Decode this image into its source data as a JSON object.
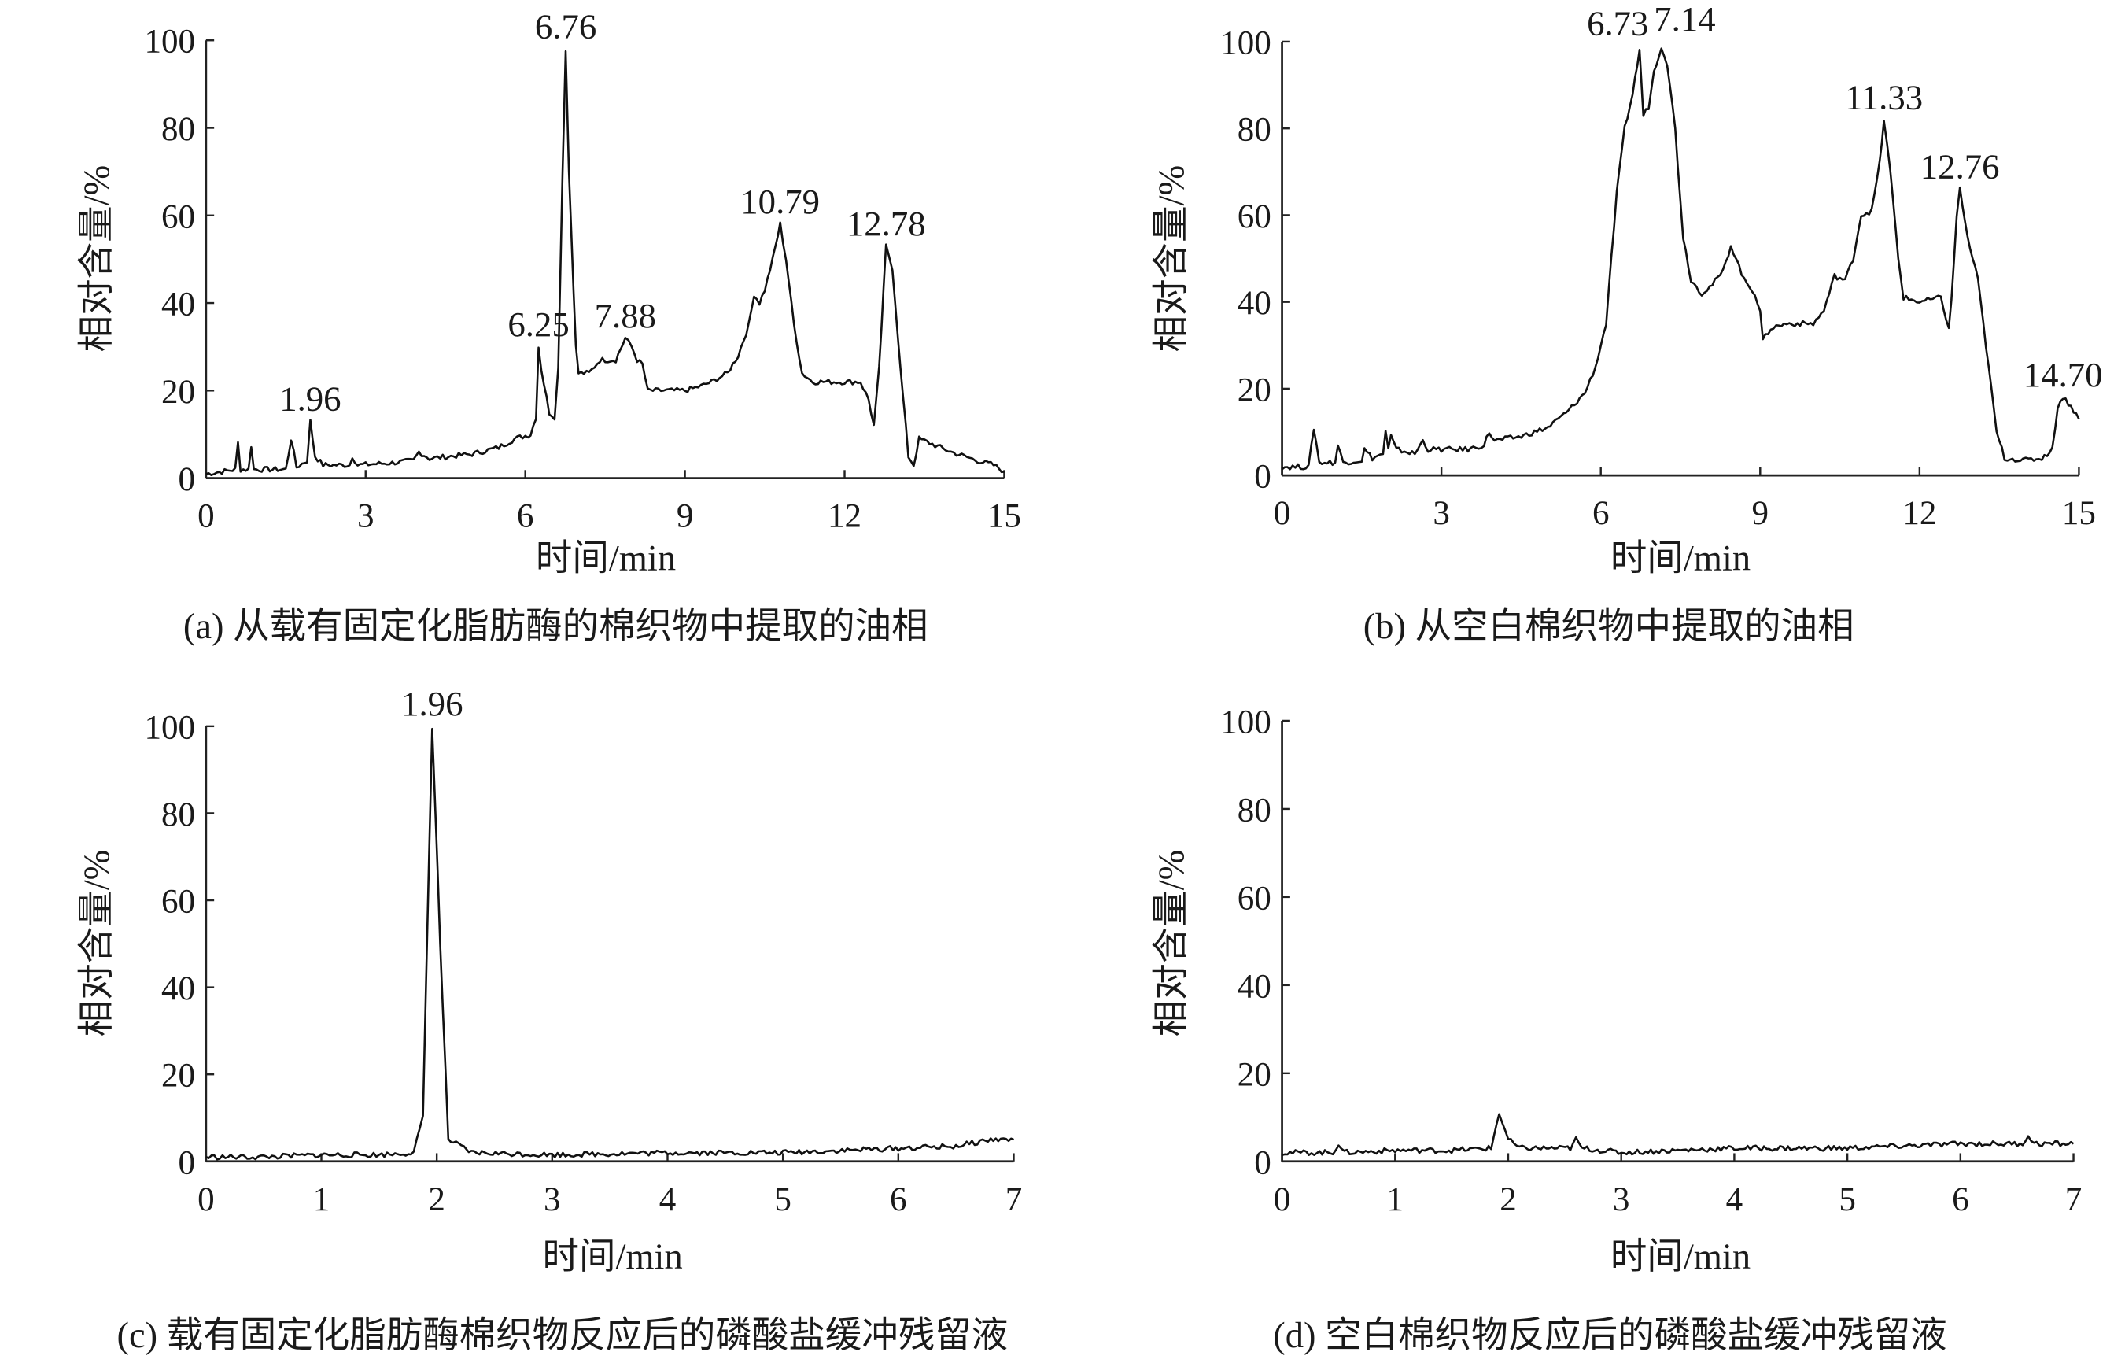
{
  "chart_data": [
    {
      "id": "a",
      "type": "line",
      "caption": "(a) 从载有固定化脂肪酶的棉织物中提取的油相",
      "xlabel": "时间/min",
      "ylabel": "相对含量/%",
      "xlim": [
        0,
        15
      ],
      "ylim": [
        0,
        100
      ],
      "xticks": [
        0,
        3,
        6,
        9,
        12,
        15
      ],
      "yticks": [
        0,
        20,
        40,
        60,
        80,
        100
      ],
      "annotations": [
        {
          "text": "1.96",
          "x": 1.96,
          "y": 13
        },
        {
          "text": "6.25",
          "x": 6.25,
          "y": 30
        },
        {
          "text": "6.76",
          "x": 6.76,
          "y": 98
        },
        {
          "text": "7.88",
          "x": 7.88,
          "y": 32
        },
        {
          "text": "10.79",
          "x": 10.79,
          "y": 58
        },
        {
          "text": "12.78",
          "x": 12.78,
          "y": 53
        }
      ],
      "series": [
        {
          "name": "a",
          "points": [
            [
              0,
              1
            ],
            [
              0.3,
              1.5
            ],
            [
              0.55,
              2
            ],
            [
              0.6,
              8
            ],
            [
              0.65,
              2
            ],
            [
              0.8,
              2
            ],
            [
              0.85,
              7.5
            ],
            [
              0.9,
              2
            ],
            [
              1.5,
              2
            ],
            [
              1.6,
              9
            ],
            [
              1.7,
              2.5
            ],
            [
              1.9,
              4
            ],
            [
              1.96,
              13
            ],
            [
              2.05,
              5
            ],
            [
              2.2,
              3
            ],
            [
              2.7,
              3
            ],
            [
              2.75,
              5
            ],
            [
              2.85,
              3
            ],
            [
              3.5,
              3.5
            ],
            [
              3.9,
              4
            ],
            [
              4.0,
              6
            ],
            [
              4.2,
              4.5
            ],
            [
              5,
              5.5
            ],
            [
              5.5,
              7
            ],
            [
              5.8,
              9
            ],
            [
              6.1,
              10
            ],
            [
              6.2,
              14
            ],
            [
              6.25,
              30
            ],
            [
              6.3,
              25
            ],
            [
              6.45,
              15
            ],
            [
              6.55,
              14
            ],
            [
              6.62,
              25
            ],
            [
              6.7,
              70
            ],
            [
              6.76,
              98
            ],
            [
              6.82,
              70
            ],
            [
              6.95,
              30
            ],
            [
              7.0,
              24
            ],
            [
              7.2,
              24
            ],
            [
              7.4,
              27
            ],
            [
              7.7,
              27
            ],
            [
              7.88,
              32
            ],
            [
              8.0,
              30
            ],
            [
              8.1,
              27
            ],
            [
              8.2,
              26
            ],
            [
              8.3,
              20
            ],
            [
              8.5,
              20
            ],
            [
              9.0,
              20
            ],
            [
              9.3,
              21
            ],
            [
              9.5,
              22
            ],
            [
              9.8,
              24
            ],
            [
              10.0,
              28
            ],
            [
              10.2,
              35
            ],
            [
              10.3,
              42
            ],
            [
              10.4,
              40
            ],
            [
              10.5,
              43
            ],
            [
              10.65,
              50
            ],
            [
              10.79,
              58
            ],
            [
              10.9,
              50
            ],
            [
              11.05,
              35
            ],
            [
              11.2,
              24
            ],
            [
              11.4,
              22
            ],
            [
              12.0,
              22
            ],
            [
              12.3,
              22
            ],
            [
              12.45,
              18
            ],
            [
              12.55,
              12
            ],
            [
              12.65,
              25
            ],
            [
              12.78,
              53
            ],
            [
              12.9,
              48
            ],
            [
              13.05,
              25
            ],
            [
              13.2,
              5
            ],
            [
              13.3,
              3
            ],
            [
              13.4,
              9
            ],
            [
              13.6,
              8
            ],
            [
              14,
              6
            ],
            [
              14.5,
              4
            ],
            [
              14.8,
              3
            ],
            [
              15,
              1.5
            ]
          ]
        }
      ]
    },
    {
      "id": "b",
      "type": "line",
      "caption": "(b) 从空白棉织物中提取的油相",
      "xlabel": "时间/min",
      "ylabel": "相对含量/%",
      "xlim": [
        0,
        15
      ],
      "ylim": [
        0,
        100
      ],
      "xticks": [
        0,
        3,
        6,
        9,
        12,
        15
      ],
      "yticks": [
        0,
        20,
        40,
        60,
        80,
        100
      ],
      "annotations": [
        {
          "text": "6.73",
          "x": 6.6,
          "y": 99
        },
        {
          "text": "7.14",
          "x": 7.3,
          "y": 100
        },
        {
          "text": "11.33",
          "x": 11.33,
          "y": 82
        },
        {
          "text": "12.76",
          "x": 12.76,
          "y": 66
        },
        {
          "text": "14.70",
          "x": 14.7,
          "y": 18
        }
      ],
      "series": [
        {
          "name": "b",
          "points": [
            [
              0,
              2
            ],
            [
              0.5,
              2
            ],
            [
              0.6,
              11
            ],
            [
              0.7,
              3
            ],
            [
              1,
              3
            ],
            [
              1.05,
              7
            ],
            [
              1.15,
              3
            ],
            [
              1.5,
              3.5
            ],
            [
              1.55,
              6
            ],
            [
              1.7,
              4
            ],
            [
              1.9,
              5
            ],
            [
              1.95,
              10
            ],
            [
              2.0,
              6
            ],
            [
              2.05,
              9
            ],
            [
              2.15,
              6
            ],
            [
              2.5,
              5
            ],
            [
              2.65,
              8
            ],
            [
              2.75,
              6
            ],
            [
              3.5,
              6
            ],
            [
              3.8,
              7
            ],
            [
              3.9,
              10
            ],
            [
              4.0,
              8
            ],
            [
              4.5,
              9
            ],
            [
              5,
              11
            ],
            [
              5.4,
              15
            ],
            [
              5.7,
              19
            ],
            [
              5.9,
              25
            ],
            [
              6.1,
              35
            ],
            [
              6.2,
              50
            ],
            [
              6.3,
              65
            ],
            [
              6.45,
              80
            ],
            [
              6.6,
              88
            ],
            [
              6.73,
              98
            ],
            [
              6.8,
              83
            ],
            [
              6.9,
              85
            ],
            [
              7.0,
              93
            ],
            [
              7.14,
              99
            ],
            [
              7.25,
              95
            ],
            [
              7.4,
              80
            ],
            [
              7.55,
              55
            ],
            [
              7.7,
              45
            ],
            [
              7.9,
              42
            ],
            [
              8.1,
              44
            ],
            [
              8.3,
              47
            ],
            [
              8.45,
              53
            ],
            [
              8.55,
              50
            ],
            [
              8.7,
              45
            ],
            [
              8.9,
              42
            ],
            [
              9.0,
              38
            ],
            [
              9.05,
              31
            ],
            [
              9.2,
              34
            ],
            [
              9.5,
              35
            ],
            [
              10,
              35
            ],
            [
              10.2,
              38
            ],
            [
              10.4,
              46
            ],
            [
              10.6,
              45
            ],
            [
              10.75,
              50
            ],
            [
              10.9,
              60
            ],
            [
              11.1,
              61
            ],
            [
              11.25,
              72
            ],
            [
              11.33,
              82
            ],
            [
              11.45,
              70
            ],
            [
              11.6,
              50
            ],
            [
              11.7,
              41
            ],
            [
              12,
              40
            ],
            [
              12.4,
              41
            ],
            [
              12.55,
              34
            ],
            [
              12.6,
              40
            ],
            [
              12.7,
              60
            ],
            [
              12.76,
              66
            ],
            [
              12.9,
              55
            ],
            [
              13.1,
              45
            ],
            [
              13.3,
              25
            ],
            [
              13.45,
              10
            ],
            [
              13.6,
              4
            ],
            [
              14,
              3.5
            ],
            [
              14.3,
              4
            ],
            [
              14.5,
              6
            ],
            [
              14.6,
              16
            ],
            [
              14.7,
              18
            ],
            [
              14.85,
              16
            ],
            [
              15,
              13
            ]
          ]
        }
      ]
    },
    {
      "id": "c",
      "type": "line",
      "caption": "(c) 载有固定化脂肪酶棉织物反应后的磷酸盐缓冲残留液",
      "xlabel": "时间/min",
      "ylabel": "相对含量/%",
      "xlim": [
        0,
        7
      ],
      "ylim": [
        0,
        100
      ],
      "xticks": [
        0,
        1,
        2,
        3,
        4,
        5,
        6,
        7
      ],
      "yticks": [
        0,
        20,
        40,
        60,
        80,
        100
      ],
      "annotations": [
        {
          "text": "1.96",
          "x": 1.96,
          "y": 100
        }
      ],
      "series": [
        {
          "name": "c",
          "points": [
            [
              0,
              1
            ],
            [
              0.5,
              1
            ],
            [
              1,
              1.5
            ],
            [
              1.5,
              1.5
            ],
            [
              1.8,
              2
            ],
            [
              1.88,
              10
            ],
            [
              1.96,
              100
            ],
            [
              2.03,
              50
            ],
            [
              2.1,
              5
            ],
            [
              2.3,
              2
            ],
            [
              3,
              1.5
            ],
            [
              4,
              2
            ],
            [
              5,
              2
            ],
            [
              6,
              3
            ],
            [
              6.5,
              3.5
            ],
            [
              6.8,
              5
            ],
            [
              7,
              5
            ]
          ]
        }
      ]
    },
    {
      "id": "d",
      "type": "line",
      "caption": "(d) 空白棉织物反应后的磷酸盐缓冲残留液",
      "xlabel": "时间/min",
      "ylabel": "相对含量/%",
      "xlim": [
        0,
        7
      ],
      "ylim": [
        0,
        100
      ],
      "xticks": [
        0,
        1,
        2,
        3,
        4,
        5,
        6,
        7
      ],
      "yticks": [
        0,
        20,
        40,
        60,
        80,
        100
      ],
      "annotations": [],
      "series": [
        {
          "name": "d",
          "points": [
            [
              0,
              2
            ],
            [
              0.45,
              2
            ],
            [
              0.5,
              4
            ],
            [
              0.55,
              2
            ],
            [
              1,
              2.5
            ],
            [
              1.5,
              2.5
            ],
            [
              1.85,
              3
            ],
            [
              1.92,
              11
            ],
            [
              2.0,
              5
            ],
            [
              2.1,
              3
            ],
            [
              2.55,
              3
            ],
            [
              2.6,
              5
            ],
            [
              2.65,
              3
            ],
            [
              3,
              2
            ],
            [
              4,
              3
            ],
            [
              5,
              3
            ],
            [
              6,
              4
            ],
            [
              6.55,
              4
            ],
            [
              6.6,
              6
            ],
            [
              6.65,
              4
            ],
            [
              7,
              4
            ]
          ]
        }
      ]
    }
  ]
}
